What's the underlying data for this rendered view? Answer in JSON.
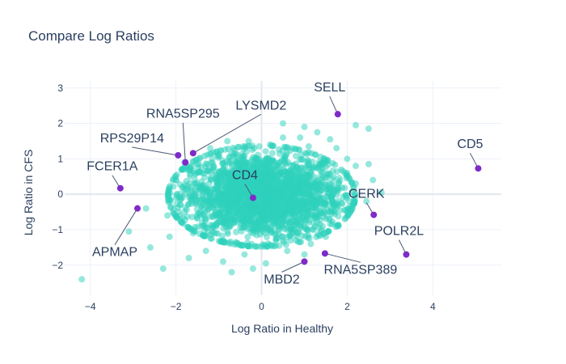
{
  "chart_data": {
    "type": "scatter",
    "title": "Compare Log Ratios",
    "xlabel": "Log Ratio in Healthy",
    "ylabel": "Log Ratio in CFS",
    "xlim": [
      -4.6,
      5.6
    ],
    "ylim": [
      -2.85,
      3.2
    ],
    "x_ticks": [
      -4,
      -2,
      0,
      2,
      4
    ],
    "y_ticks": [
      -2,
      -1,
      0,
      1,
      2,
      3
    ],
    "grid": true,
    "legend": "none",
    "colors": {
      "background": "#2dd2bc",
      "highlight": "#7e2bc9",
      "grid": "#ebf0f8",
      "zeroline": "#e1e7f0"
    },
    "background_points": [
      [
        -4.2,
        -2.4
      ],
      [
        -3.1,
        -1.05
      ],
      [
        -2.3,
        -2.1
      ],
      [
        -2.6,
        -1.5
      ],
      [
        -1.7,
        -1.8
      ],
      [
        -1.3,
        -1.6
      ],
      [
        -0.7,
        -2.2
      ],
      [
        -0.9,
        -1.9
      ],
      [
        -0.4,
        -1.7
      ],
      [
        -0.2,
        -2.1
      ],
      [
        0.1,
        -1.95
      ],
      [
        0.6,
        -1.6
      ],
      [
        1.15,
        -1.4
      ],
      [
        -2.2,
        -0.6
      ],
      [
        -1.9,
        -0.3
      ],
      [
        -2.0,
        0.4
      ],
      [
        -1.8,
        0.9
      ],
      [
        -1.2,
        1.3
      ],
      [
        -0.8,
        1.5
      ],
      [
        -0.3,
        1.5
      ],
      [
        0.2,
        1.4
      ],
      [
        0.5,
        1.6
      ],
      [
        0.9,
        1.6
      ],
      [
        1.0,
        1.9
      ],
      [
        1.3,
        1.75
      ],
      [
        1.6,
        1.55
      ],
      [
        1.75,
        1.3
      ],
      [
        2.0,
        1.0
      ],
      [
        2.2,
        0.8
      ],
      [
        2.5,
        1.85
      ],
      [
        2.2,
        1.95
      ],
      [
        2.5,
        0.85
      ],
      [
        2.0,
        0.6
      ],
      [
        2.2,
        0.3
      ],
      [
        2.45,
        -0.2
      ],
      [
        2.0,
        -0.5
      ],
      [
        1.8,
        -0.9
      ],
      [
        1.5,
        -1.2
      ],
      [
        1.2,
        -1.0
      ],
      [
        0.8,
        -1.3
      ],
      [
        -1.6,
        -1.1
      ],
      [
        -1.4,
        -0.9
      ],
      [
        -1.55,
        0.15
      ],
      [
        -1.4,
        0.6
      ],
      [
        -0.9,
        -1.3
      ],
      [
        1.1,
        1.35
      ],
      [
        2.6,
        0.4
      ],
      [
        2.8,
        0.05
      ],
      [
        -2.7,
        -0.4
      ],
      [
        -2.15,
        -1.2
      ],
      [
        1.0,
        -1.7
      ],
      [
        0.5,
        2.0
      ],
      [
        -0.6,
        1.05
      ],
      [
        0.3,
        -1.45
      ],
      [
        1.5,
        0.95
      ]
    ],
    "cluster": {
      "center": [
        0.0,
        -0.05
      ],
      "spread": [
        0.95,
        0.62
      ],
      "count": 2400
    },
    "highlights": [
      {
        "label": "SELL",
        "x": 1.78,
        "y": 2.26
      },
      {
        "label": "RNA5SP295",
        "x": -1.78,
        "y": 0.9
      },
      {
        "label": "LYSMD2",
        "x": -1.6,
        "y": 1.16
      },
      {
        "label": "RPS29P14",
        "x": -1.95,
        "y": 1.1
      },
      {
        "label": "FCER1A",
        "x": -3.3,
        "y": 0.17
      },
      {
        "label": "CD4",
        "x": -0.2,
        "y": -0.1
      },
      {
        "label": "CD5",
        "x": 5.06,
        "y": 0.73
      },
      {
        "label": "CERK",
        "x": 2.62,
        "y": -0.58
      },
      {
        "label": "APMAP",
        "x": -2.9,
        "y": -0.4
      },
      {
        "label": "POLR2L",
        "x": 3.38,
        "y": -1.7
      },
      {
        "label": "MBD2",
        "x": 1.0,
        "y": -1.9
      },
      {
        "label": "RNA5SP389",
        "x": 1.48,
        "y": -1.67
      }
    ]
  }
}
